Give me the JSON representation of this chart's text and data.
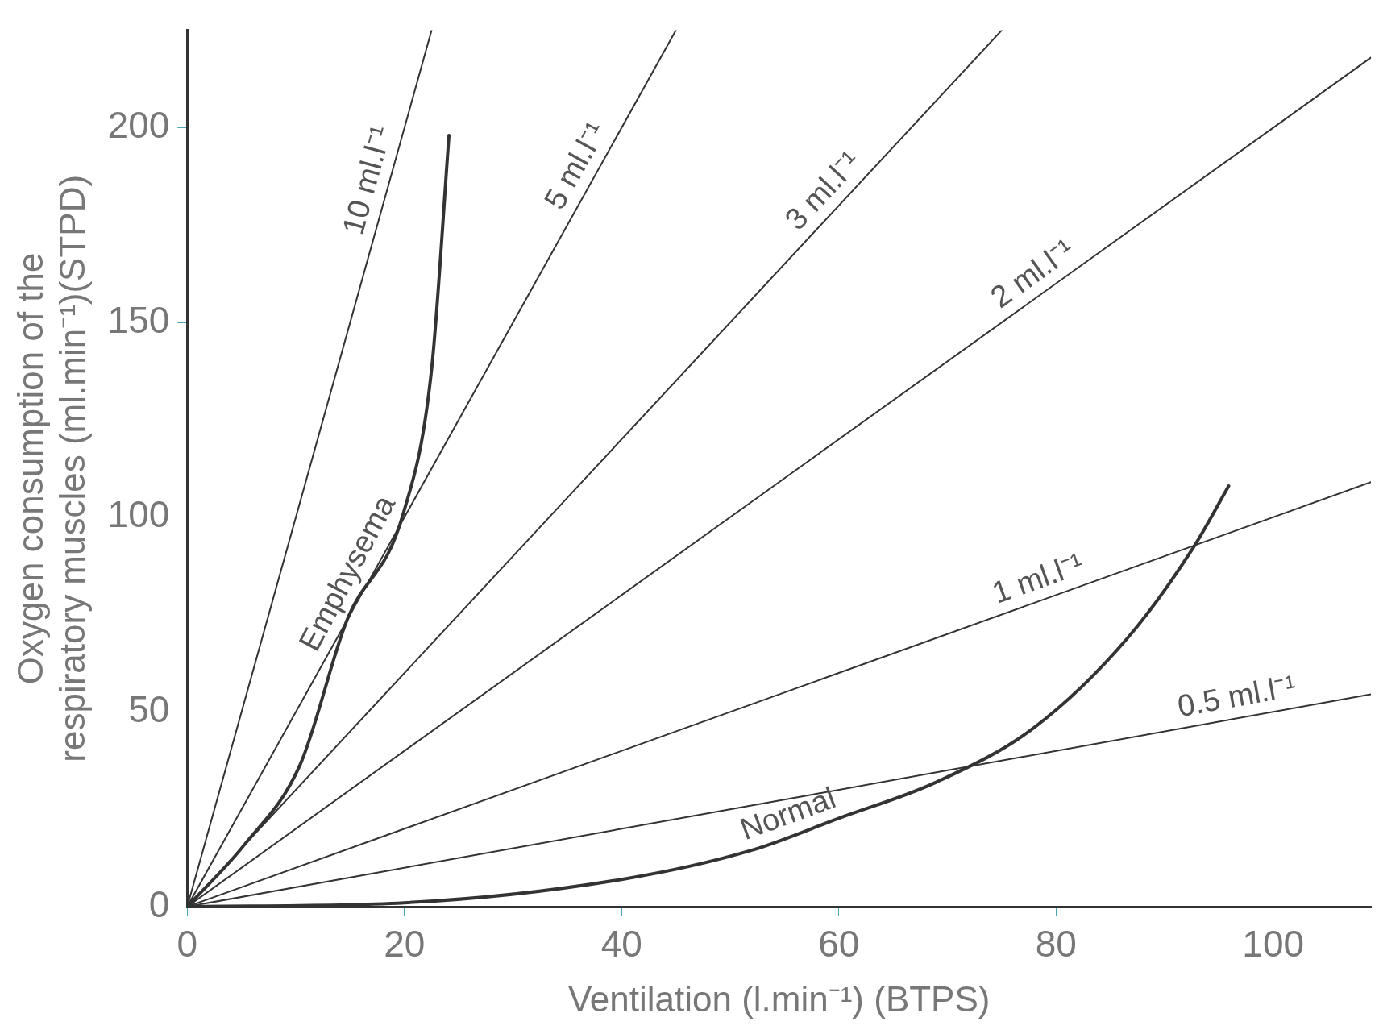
{
  "chart_data": {
    "type": "line",
    "xlabel": "Ventilation (l.min⁻¹) (BTPS)",
    "ylabel": "Oxygen consumption of the respiratory muscles (ml.min⁻¹)(STPD)",
    "xlim": [
      0,
      109
    ],
    "ylim": [
      0,
      225
    ],
    "xticks": [
      0,
      20,
      40,
      60,
      80,
      100
    ],
    "yticks": [
      0,
      50,
      100,
      150,
      200
    ],
    "grid": false,
    "legend": false,
    "marker": "none",
    "line_style": "solid",
    "series": [
      {
        "name": "10 ml.l⁻¹",
        "color": "#333333",
        "x": [
          0,
          22.5
        ],
        "values": [
          0,
          225
        ]
      },
      {
        "name": "5 ml.l⁻¹",
        "color": "#333333",
        "x": [
          0,
          45
        ],
        "values": [
          0,
          225
        ]
      },
      {
        "name": "3 ml.l⁻¹",
        "color": "#333333",
        "x": [
          0,
          75
        ],
        "values": [
          0,
          225
        ]
      },
      {
        "name": "2 ml.l⁻¹",
        "color": "#333333",
        "x": [
          0,
          109
        ],
        "values": [
          0,
          218
        ]
      },
      {
        "name": "1 ml.l⁻¹",
        "color": "#333333",
        "x": [
          0,
          109
        ],
        "values": [
          0,
          109
        ]
      },
      {
        "name": "0.5 ml.l⁻¹",
        "color": "#333333",
        "x": [
          0,
          109
        ],
        "values": [
          0,
          54.5
        ]
      },
      {
        "name": "Emphysema",
        "color": "#333333",
        "x": [
          0,
          5.2,
          10.4,
          14.7,
          19.9,
          22.5,
          24.1
        ],
        "values": [
          0,
          15.7,
          36.5,
          73.5,
          101,
          138,
          198
        ]
      },
      {
        "name": "Normal",
        "color": "#333333",
        "x": [
          0,
          20,
          40,
          52,
          60,
          69,
          78,
          86.6,
          92.6,
          95.9
        ],
        "values": [
          0,
          1,
          7,
          14.5,
          22.7,
          32,
          46,
          69,
          92,
          108
        ]
      }
    ]
  }
}
